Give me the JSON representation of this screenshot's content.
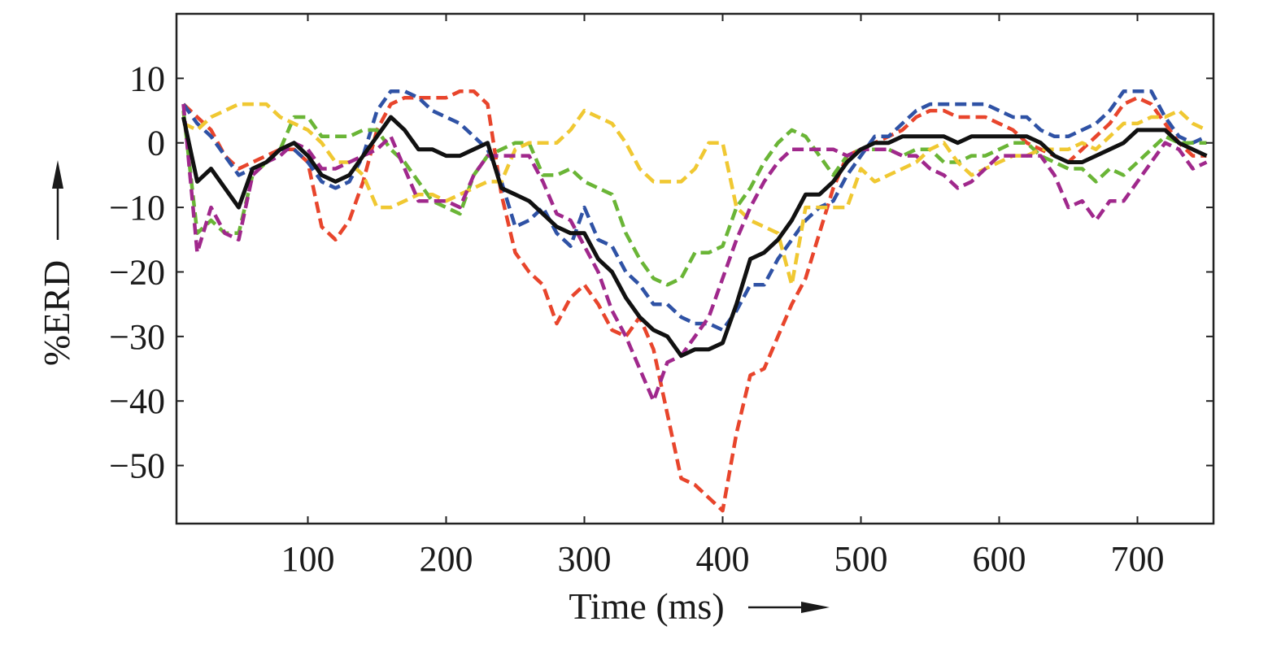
{
  "chart_data": {
    "type": "line",
    "xlabel": "Time (ms)",
    "ylabel": "%ERD",
    "xlim": [
      5,
      755
    ],
    "ylim": [
      -59,
      20
    ],
    "xticks": [
      100,
      200,
      300,
      400,
      500,
      600,
      700
    ],
    "yticks": [
      10,
      0,
      -10,
      -20,
      -30,
      -40,
      -50
    ],
    "ytick_labels": [
      "10",
      "0",
      "−10",
      "−20",
      "−30",
      "−40",
      "−50"
    ],
    "grid": false,
    "series": [
      {
        "color": "#e8452c",
        "style": "dashed",
        "x": [
          10,
          20,
          30,
          40,
          50,
          60,
          70,
          80,
          90,
          100,
          110,
          120,
          130,
          140,
          150,
          160,
          170,
          180,
          190,
          200,
          210,
          220,
          230,
          240,
          250,
          260,
          270,
          280,
          290,
          300,
          310,
          320,
          330,
          340,
          350,
          360,
          370,
          380,
          390,
          400,
          410,
          420,
          430,
          440,
          450,
          460,
          470,
          480,
          490,
          500,
          510,
          520,
          530,
          540,
          550,
          560,
          570,
          580,
          590,
          600,
          610,
          620,
          630,
          640,
          650,
          660,
          670,
          680,
          690,
          700,
          710,
          720,
          730,
          740,
          750
        ],
        "y": [
          6,
          4,
          2,
          -2,
          -4,
          -3,
          -2,
          -1,
          -1,
          -3,
          -13,
          -15,
          -12,
          -6,
          2,
          6,
          7,
          7,
          7,
          7,
          8,
          8,
          6,
          -8,
          -17,
          -20,
          -22,
          -28,
          -24,
          -22,
          -25,
          -29,
          -30,
          -27,
          -32,
          -42,
          -52,
          -53,
          -55,
          -57,
          -45,
          -36,
          -35,
          -30,
          -25,
          -21,
          -14,
          -7,
          -2,
          -1,
          0,
          1,
          2,
          4,
          5,
          5,
          4,
          4,
          4,
          3,
          2,
          0,
          -1,
          -2,
          -3,
          -1,
          1,
          3,
          6,
          7,
          6,
          3,
          0,
          -2,
          -2
        ]
      },
      {
        "color": "#2f52a5",
        "style": "dashed",
        "x": [
          10,
          20,
          30,
          40,
          50,
          60,
          70,
          80,
          90,
          100,
          110,
          120,
          130,
          140,
          150,
          160,
          170,
          180,
          190,
          200,
          210,
          220,
          230,
          240,
          250,
          260,
          270,
          280,
          290,
          300,
          310,
          320,
          330,
          340,
          350,
          360,
          370,
          380,
          390,
          400,
          410,
          420,
          430,
          440,
          450,
          460,
          470,
          480,
          490,
          500,
          510,
          520,
          530,
          540,
          550,
          560,
          570,
          580,
          590,
          600,
          610,
          620,
          630,
          640,
          650,
          660,
          670,
          680,
          690,
          700,
          710,
          720,
          730,
          740,
          750
        ],
        "y": [
          6,
          3,
          1,
          -2,
          -5,
          -4,
          -3,
          -1,
          -1,
          -3,
          -6,
          -7,
          -6,
          -2,
          5,
          8,
          8,
          7,
          5,
          4,
          3,
          1,
          -1,
          -6,
          -13,
          -12,
          -10,
          -14,
          -16,
          -10,
          -15,
          -16,
          -20,
          -22,
          -25,
          -25,
          -27,
          -28,
          -28,
          -29,
          -26,
          -22,
          -22,
          -18,
          -15,
          -12,
          -10,
          -9,
          -5,
          -2,
          1,
          1,
          3,
          5,
          6,
          6,
          6,
          6,
          6,
          5,
          4,
          4,
          2,
          1,
          1,
          2,
          3,
          5,
          8,
          8,
          8,
          4,
          1,
          0,
          1
        ]
      },
      {
        "color": "#6ab536",
        "style": "dashed",
        "x": [
          10,
          20,
          30,
          40,
          50,
          60,
          70,
          80,
          90,
          100,
          110,
          120,
          130,
          140,
          150,
          160,
          170,
          180,
          190,
          200,
          210,
          220,
          230,
          240,
          250,
          260,
          270,
          280,
          290,
          300,
          310,
          320,
          330,
          340,
          350,
          360,
          370,
          380,
          390,
          400,
          410,
          420,
          430,
          440,
          450,
          460,
          470,
          480,
          490,
          500,
          510,
          520,
          530,
          540,
          550,
          560,
          570,
          580,
          590,
          600,
          610,
          620,
          630,
          640,
          650,
          660,
          670,
          680,
          690,
          700,
          710,
          720,
          730,
          740,
          750
        ],
        "y": [
          5,
          -14,
          -12,
          -14,
          -14,
          -5,
          -3,
          -1,
          4,
          4,
          1,
          1,
          1,
          2,
          2,
          -1,
          -3,
          -6,
          -9,
          -10,
          -11,
          -5,
          -2,
          -1,
          0,
          0,
          -5,
          -5,
          -4,
          -6,
          -7,
          -8,
          -14,
          -18,
          -21,
          -22,
          -21,
          -17,
          -17,
          -16,
          -10,
          -7,
          -3,
          0,
          2,
          1,
          -2,
          -5,
          -2,
          -1,
          -1,
          -1,
          -2,
          -1,
          -1,
          -3,
          -3,
          -2,
          -2,
          -1,
          0,
          0,
          -2,
          -3,
          -4,
          -4,
          -6,
          -4,
          -5,
          -3,
          -1,
          1,
          0,
          0,
          0
        ]
      },
      {
        "color": "#f0c832",
        "style": "dashed",
        "x": [
          10,
          20,
          30,
          40,
          50,
          60,
          70,
          80,
          90,
          100,
          110,
          120,
          130,
          140,
          150,
          160,
          170,
          180,
          190,
          200,
          210,
          220,
          230,
          240,
          250,
          260,
          270,
          280,
          290,
          300,
          310,
          320,
          330,
          340,
          350,
          360,
          370,
          380,
          390,
          400,
          410,
          420,
          430,
          440,
          450,
          460,
          470,
          480,
          490,
          500,
          510,
          520,
          530,
          540,
          550,
          560,
          570,
          580,
          590,
          600,
          610,
          620,
          630,
          640,
          650,
          660,
          670,
          680,
          690,
          700,
          710,
          720,
          730,
          740,
          750
        ],
        "y": [
          3,
          2,
          4,
          5,
          6,
          6,
          6,
          4,
          3,
          2,
          0,
          -3,
          -3,
          -5,
          -10,
          -10,
          -9,
          -8,
          -8,
          -9,
          -8,
          -7,
          -6,
          -6,
          -1,
          0,
          0,
          0,
          2,
          5,
          4,
          3,
          0,
          -4,
          -6,
          -6,
          -6,
          -4,
          0,
          0,
          -10,
          -12,
          -13,
          -14,
          -22,
          -10,
          -10,
          -10,
          -10,
          -4,
          -6,
          -5,
          -4,
          -3,
          -1,
          0,
          -3,
          -5,
          -4,
          -3,
          -2,
          -2,
          -1,
          -1,
          -1,
          0,
          -1,
          1,
          3,
          3,
          4,
          4,
          5,
          3,
          2
        ]
      },
      {
        "color": "#a0288c",
        "style": "dashed",
        "x": [
          10,
          20,
          30,
          40,
          50,
          60,
          70,
          80,
          90,
          100,
          110,
          120,
          130,
          140,
          150,
          160,
          170,
          180,
          190,
          200,
          210,
          220,
          230,
          240,
          250,
          260,
          270,
          280,
          290,
          300,
          310,
          320,
          330,
          340,
          350,
          360,
          370,
          380,
          390,
          400,
          410,
          420,
          430,
          440,
          450,
          460,
          470,
          480,
          490,
          500,
          510,
          520,
          530,
          540,
          550,
          560,
          570,
          580,
          590,
          600,
          610,
          620,
          630,
          640,
          650,
          660,
          670,
          680,
          690,
          700,
          710,
          720,
          730,
          740,
          750
        ],
        "y": [
          6,
          -17,
          -10,
          -14,
          -15,
          -5,
          -3,
          -2,
          0,
          -1,
          -4,
          -4,
          -3,
          -2,
          -1,
          1,
          -4,
          -9,
          -9,
          -9,
          -10,
          -5,
          -2,
          -2,
          -2,
          -2,
          -6,
          -11,
          -12,
          -16,
          -20,
          -26,
          -30,
          -35,
          -40,
          -34,
          -33,
          -30,
          -27,
          -21,
          -15,
          -10,
          -6,
          -3,
          -1,
          -1,
          -1,
          -1,
          -2,
          -1,
          -1,
          -1,
          -2,
          -2,
          -4,
          -5,
          -7,
          -6,
          -4,
          -2,
          -2,
          -2,
          -2,
          -5,
          -10,
          -9,
          -12,
          -9,
          -9,
          -6,
          -3,
          0,
          -1,
          -4,
          -3
        ]
      },
      {
        "color": "#111111",
        "style": "solid",
        "x": [
          10,
          20,
          30,
          40,
          50,
          60,
          70,
          80,
          90,
          100,
          110,
          120,
          130,
          140,
          150,
          160,
          170,
          180,
          190,
          200,
          210,
          220,
          230,
          240,
          250,
          260,
          270,
          280,
          290,
          300,
          310,
          320,
          330,
          340,
          350,
          360,
          370,
          380,
          390,
          400,
          410,
          420,
          430,
          440,
          450,
          460,
          470,
          480,
          490,
          500,
          510,
          520,
          530,
          540,
          550,
          560,
          570,
          580,
          590,
          600,
          610,
          620,
          630,
          640,
          650,
          660,
          670,
          680,
          690,
          700,
          710,
          720,
          730,
          740,
          750
        ],
        "y": [
          4,
          -6,
          -4,
          -7,
          -10,
          -4,
          -3,
          -1,
          0,
          -2,
          -5,
          -6,
          -5,
          -2,
          1,
          4,
          2,
          -1,
          -1,
          -2,
          -2,
          -1,
          0,
          -7,
          -8,
          -9,
          -11,
          -13,
          -14,
          -14,
          -18,
          -20,
          -24,
          -27,
          -29,
          -30,
          -33,
          -32,
          -32,
          -31,
          -25,
          -18,
          -17,
          -15,
          -12,
          -8,
          -8,
          -6,
          -3,
          -1,
          0,
          0,
          1,
          1,
          1,
          1,
          0,
          1,
          1,
          1,
          1,
          1,
          0,
          -2,
          -3,
          -3,
          -2,
          -1,
          0,
          2,
          2,
          2,
          0,
          -1,
          -2
        ]
      }
    ]
  }
}
